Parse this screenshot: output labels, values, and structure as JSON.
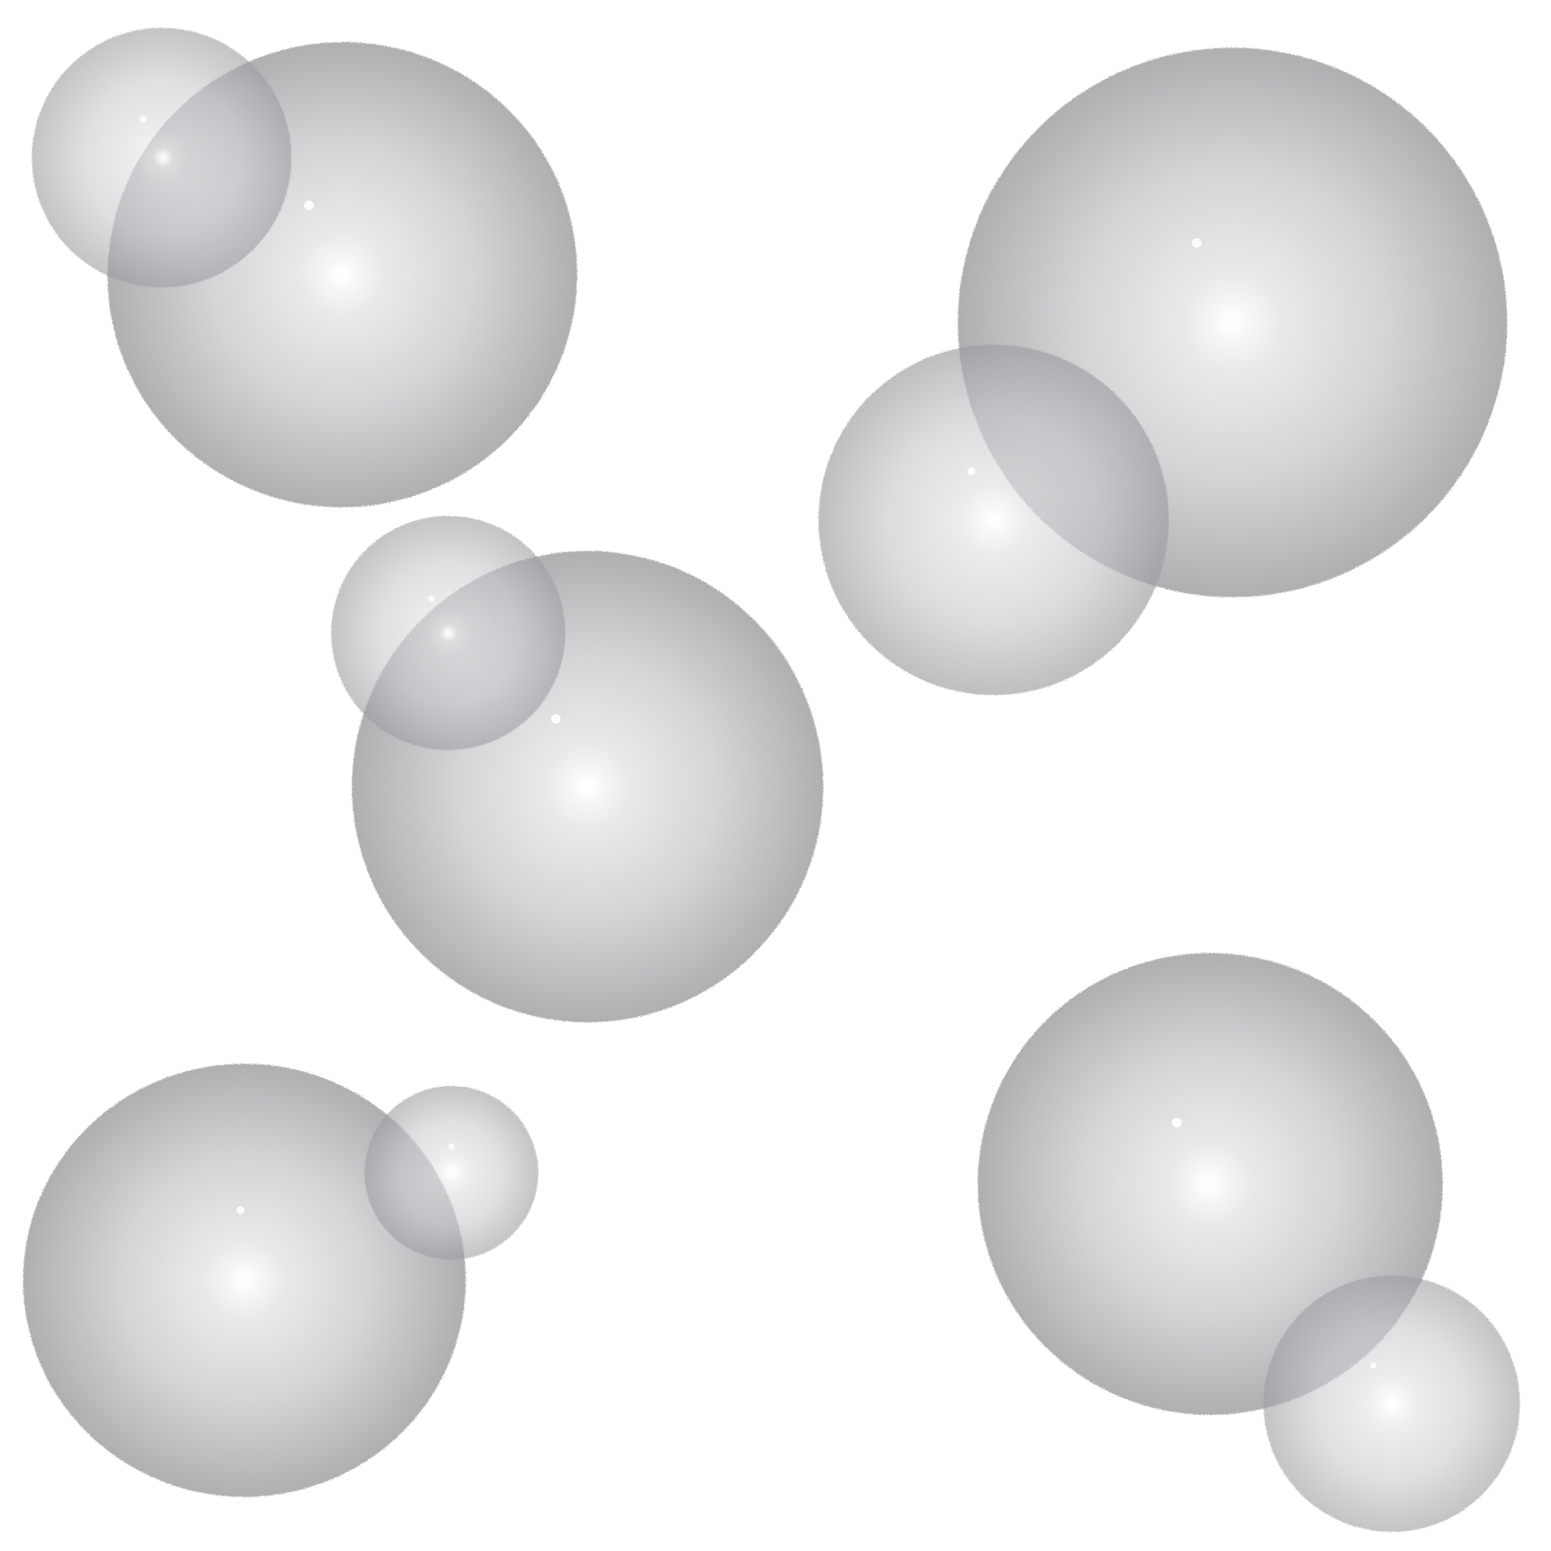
{
  "scene": {
    "description_role": "decorative-illustration",
    "background_color": "#ffffff",
    "sphere_colors": {
      "highlight": "#ffffff",
      "mid": "#d3d3d6",
      "edge": "#a7a7aa",
      "overlap_shadow": "#6f6f74"
    },
    "groups": [
      {
        "name": "top-left-pair",
        "sphere_count": 2
      },
      {
        "name": "top-right-pair",
        "sphere_count": 2
      },
      {
        "name": "center-pair",
        "sphere_count": 2
      },
      {
        "name": "bottom-left-pair",
        "sphere_count": 2
      },
      {
        "name": "bottom-right-pair",
        "sphere_count": 2
      }
    ]
  }
}
